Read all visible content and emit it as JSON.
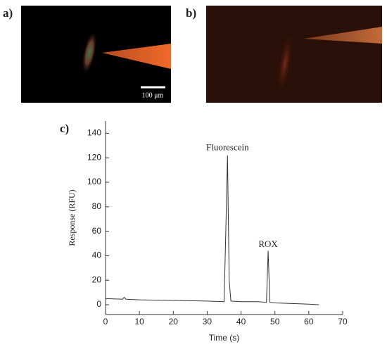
{
  "panel_labels": [
    "a)",
    "b)",
    "c)"
  ],
  "scale_bar_label": "100 μm",
  "chart_data": {
    "type": "line",
    "x_label": "Time (s)",
    "y_label": "Response (RFU)",
    "x": [
      0,
      5,
      5.5,
      6,
      10,
      20,
      30,
      35,
      35.5,
      36,
      36.5,
      37,
      40,
      45,
      47.5,
      48,
      48.5,
      50,
      55,
      60,
      63
    ],
    "values": [
      5,
      4.5,
      6,
      4.5,
      4,
      3.5,
      3,
      2.5,
      60,
      122,
      20,
      3,
      2.5,
      2.5,
      2,
      44,
      2,
      1.5,
      1,
      0.5,
      0
    ],
    "color": "#333333",
    "annotations": [
      {
        "text": "Fluorescein",
        "x": 36,
        "y": 128
      },
      {
        "text": "ROX",
        "x": 48,
        "y": 49
      }
    ],
    "xlim": [
      0,
      70
    ],
    "xticks": [
      0,
      10,
      20,
      30,
      40,
      50,
      60,
      70
    ],
    "ylim": [
      -8,
      150
    ],
    "yticks": [
      0,
      20,
      40,
      60,
      80,
      100,
      120,
      140
    ]
  }
}
